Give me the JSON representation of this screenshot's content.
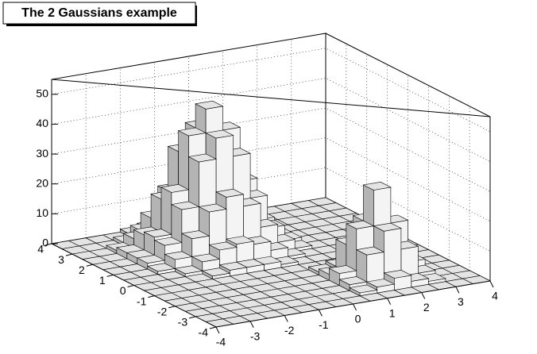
{
  "chart_data": {
    "type": "lego",
    "title": "The 2 Gaussians example",
    "xbins": [
      -4,
      -3.5,
      -3,
      -2.5,
      -2,
      -1.5,
      -1,
      -0.5,
      0,
      0.5,
      1,
      1.5,
      2,
      2.5,
      3,
      3.5,
      4
    ],
    "ybins": [
      -4,
      -3.5,
      -3,
      -2.5,
      -2,
      -1.5,
      -1,
      -0.5,
      0,
      0.5,
      1,
      1.5,
      2,
      2.5,
      3,
      3.5,
      4
    ],
    "values": [
      [
        0,
        0,
        0,
        0,
        0,
        0,
        0,
        0,
        0,
        0,
        0,
        0,
        0,
        0,
        0,
        0
      ],
      [
        0,
        0,
        0,
        0,
        0,
        0,
        0,
        0,
        0,
        1,
        2,
        4,
        2,
        1,
        0,
        0
      ],
      [
        0,
        0,
        0,
        0,
        0,
        0,
        0,
        0,
        0,
        2,
        11,
        18,
        11,
        2,
        0,
        0
      ],
      [
        0,
        0,
        0,
        0,
        0,
        0,
        0,
        0,
        0,
        4,
        18,
        30,
        18,
        4,
        0,
        0
      ],
      [
        0,
        0,
        0,
        0,
        0,
        0,
        0,
        0,
        0,
        2,
        11,
        18,
        11,
        2,
        0,
        0
      ],
      [
        0,
        0,
        0,
        0,
        0,
        0,
        0,
        0,
        0,
        1,
        2,
        4,
        2,
        1,
        0,
        0
      ],
      [
        0,
        0,
        0,
        0,
        0,
        0,
        0,
        0,
        0,
        0,
        0,
        0,
        0,
        0,
        0,
        0
      ],
      [
        0,
        0,
        0,
        0,
        1,
        2,
        2,
        2,
        1,
        0,
        0,
        0,
        0,
        0,
        0,
        0
      ],
      [
        0,
        0,
        0,
        1,
        4,
        7,
        8,
        7,
        4,
        1,
        0,
        0,
        0,
        0,
        0,
        0
      ],
      [
        0,
        0,
        1,
        4,
        10,
        18,
        22,
        18,
        10,
        4,
        1,
        0,
        0,
        0,
        0,
        0
      ],
      [
        0,
        0,
        2,
        7,
        18,
        33,
        40,
        33,
        18,
        7,
        2,
        0,
        0,
        0,
        0,
        0
      ],
      [
        0,
        0,
        2,
        8,
        22,
        40,
        48,
        40,
        22,
        8,
        2,
        0,
        0,
        0,
        0,
        0
      ],
      [
        0,
        0,
        2,
        7,
        18,
        33,
        40,
        33,
        18,
        7,
        2,
        0,
        0,
        0,
        0,
        0
      ],
      [
        0,
        0,
        1,
        4,
        10,
        18,
        22,
        18,
        10,
        4,
        1,
        0,
        0,
        0,
        0,
        0
      ],
      [
        0,
        0,
        0,
        1,
        4,
        7,
        8,
        7,
        4,
        1,
        0,
        0,
        0,
        0,
        0,
        0
      ],
      [
        0,
        0,
        0,
        0,
        1,
        2,
        2,
        2,
        1,
        0,
        0,
        0,
        0,
        0,
        0,
        0
      ]
    ],
    "xlim": [
      -4,
      4
    ],
    "ylim": [
      -4,
      4
    ],
    "zlim": [
      0,
      55
    ],
    "xticks": [
      -4,
      -3,
      -2,
      -1,
      0,
      1,
      2,
      3,
      4
    ],
    "yticks": [
      -4,
      -3,
      -2,
      -1,
      0,
      1,
      2,
      3,
      4
    ],
    "zticks": [
      0,
      10,
      20,
      30,
      40,
      50
    ],
    "grid": true,
    "color": "#e4e4e4"
  }
}
